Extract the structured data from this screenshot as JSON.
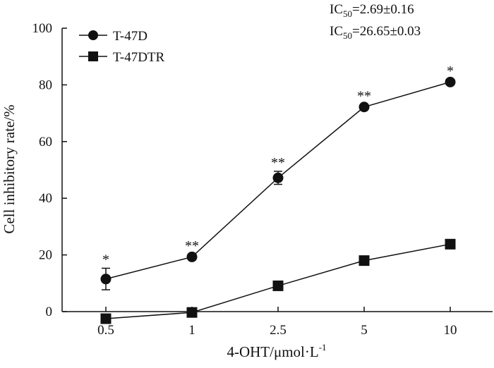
{
  "chart_data": {
    "type": "line",
    "categories": [
      "0.5",
      "1",
      "2.5",
      "5",
      "10"
    ],
    "xlabel": "4-OHT/μmol·L",
    "xlabel_sup": "-1",
    "ylabel": "Cell inhibitory rate/%",
    "ylim": [
      0,
      100
    ],
    "yticks": [
      0,
      20,
      40,
      60,
      80,
      100
    ],
    "grid": false,
    "legend_position": "top-left",
    "series": [
      {
        "name": "T-47D",
        "marker": "circle",
        "values": [
          11.5,
          19.3,
          47.2,
          72.2,
          81.0
        ],
        "errors": [
          3.8,
          0.8,
          2.3,
          0.8,
          0.8
        ],
        "significance": [
          "*",
          "**",
          "**",
          "**",
          "*"
        ]
      },
      {
        "name": "T-47DTR",
        "marker": "square",
        "values": [
          -2.5,
          -0.3,
          9.1,
          18.0,
          23.8
        ]
      }
    ],
    "annotations": [
      {
        "pre": "IC",
        "sub": "50",
        "post": "=2.69±0.16"
      },
      {
        "pre": "IC",
        "sub": "50",
        "post": "=26.65±0.03"
      }
    ]
  }
}
